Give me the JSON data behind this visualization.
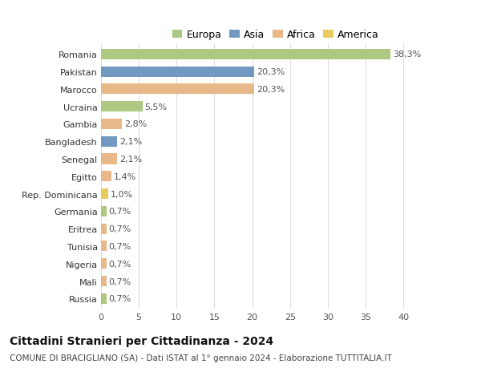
{
  "categories": [
    "Romania",
    "Pakistan",
    "Marocco",
    "Ucraina",
    "Gambia",
    "Bangladesh",
    "Senegal",
    "Egitto",
    "Rep. Dominicana",
    "Germania",
    "Eritrea",
    "Tunisia",
    "Nigeria",
    "Mali",
    "Russia"
  ],
  "values": [
    38.3,
    20.3,
    20.3,
    5.5,
    2.8,
    2.1,
    2.1,
    1.4,
    1.0,
    0.7,
    0.7,
    0.7,
    0.7,
    0.7,
    0.7
  ],
  "labels": [
    "38,3%",
    "20,3%",
    "20,3%",
    "5,5%",
    "2,8%",
    "2,1%",
    "2,1%",
    "1,4%",
    "1,0%",
    "0,7%",
    "0,7%",
    "0,7%",
    "0,7%",
    "0,7%",
    "0,7%"
  ],
  "colors": [
    "#adc880",
    "#7098c0",
    "#e8b888",
    "#adc880",
    "#e8b888",
    "#7098c0",
    "#e8b888",
    "#e8b888",
    "#e8cc60",
    "#adc880",
    "#e8b888",
    "#e8b888",
    "#e8b888",
    "#e8b888",
    "#adc880"
  ],
  "legend_labels": [
    "Europa",
    "Asia",
    "Africa",
    "America"
  ],
  "legend_colors": [
    "#adc880",
    "#7098c0",
    "#e8b888",
    "#e8cc60"
  ],
  "title": "Cittadini Stranieri per Cittadinanza - 2024",
  "subtitle": "COMUNE DI BRACIGLIANO (SA) - Dati ISTAT al 1° gennaio 2024 - Elaborazione TUTTITALIA.IT",
  "xlim": [
    0,
    42
  ],
  "xticks": [
    0,
    5,
    10,
    15,
    20,
    25,
    30,
    35,
    40
  ],
  "background_color": "#ffffff",
  "grid_color": "#dddddd",
  "bar_height": 0.6,
  "title_fontsize": 10,
  "subtitle_fontsize": 7.5,
  "tick_fontsize": 8,
  "label_fontsize": 8,
  "legend_fontsize": 9
}
